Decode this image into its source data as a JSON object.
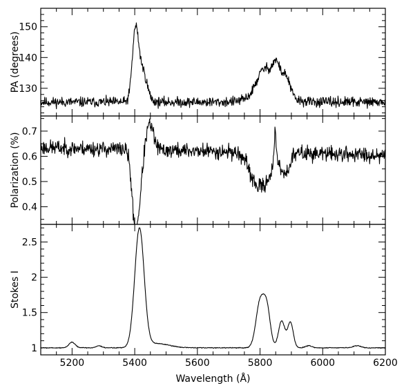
{
  "chart_data": [
    {
      "type": "line",
      "id": "pa",
      "ylabel": "PA (degrees)",
      "xlim": [
        5100,
        6200
      ],
      "ylim": [
        121,
        156
      ],
      "yticks": [
        130,
        140,
        150
      ],
      "yticklabels": [
        "130",
        "140",
        "150"
      ],
      "xticks": [
        5200,
        5400,
        5600,
        5800,
        6000,
        6200
      ],
      "show_xticklabels": false,
      "profile": {
        "baseline": 125.5,
        "noise": 1.6,
        "seed": 11,
        "components": [
          {
            "center": 5402,
            "width": 10,
            "amp": 22
          },
          {
            "center": 5425,
            "width": 14,
            "amp": 10
          },
          {
            "center": 5815,
            "width": 25,
            "amp": 9
          },
          {
            "center": 5852,
            "width": 12,
            "amp": 8
          },
          {
            "center": 5882,
            "width": 14,
            "amp": 7
          },
          {
            "center": 5830,
            "width": 55,
            "amp": 2
          }
        ]
      },
      "x": [
        5100,
        5380,
        5395,
        5402,
        5410,
        5425,
        5445,
        5470,
        5760,
        5790,
        5815,
        5835,
        5852,
        5865,
        5882,
        5910,
        5950,
        6200
      ],
      "y": [
        125.5,
        126,
        140,
        154,
        149,
        140,
        130,
        127,
        127,
        133,
        136,
        132,
        140,
        135,
        137,
        128,
        126,
        125
      ]
    },
    {
      "type": "line",
      "id": "pol",
      "ylabel": "Polarization (%)",
      "xlim": [
        5100,
        6200
      ],
      "ylim": [
        0.33,
        0.76
      ],
      "yticks": [
        0.4,
        0.5,
        0.6,
        0.7
      ],
      "yticklabels": [
        "0.4",
        "0.5",
        "0.6",
        "0.7"
      ],
      "xticks": [
        5200,
        5400,
        5600,
        5800,
        6000,
        6200
      ],
      "show_xticklabels": false,
      "profile": {
        "baseline": 0.635,
        "noise": 0.03,
        "seed": 23,
        "trend_end": 0.605,
        "components": [
          {
            "center": 5400,
            "width": 10,
            "amp": -0.26
          },
          {
            "center": 5415,
            "width": 10,
            "amp": -0.14
          },
          {
            "center": 5448,
            "width": 12,
            "amp": 0.1
          },
          {
            "center": 5790,
            "width": 25,
            "amp": -0.12
          },
          {
            "center": 5825,
            "width": 20,
            "amp": -0.06
          },
          {
            "center": 5848,
            "width": 3,
            "amp": 0.12
          },
          {
            "center": 5880,
            "width": 14,
            "amp": -0.08
          }
        ]
      },
      "x": [
        5100,
        5380,
        5395,
        5400,
        5412,
        5430,
        5448,
        5470,
        5760,
        5790,
        5820,
        5848,
        5865,
        5880,
        5910,
        6200
      ],
      "y": [
        0.66,
        0.63,
        0.45,
        0.35,
        0.44,
        0.6,
        0.73,
        0.66,
        0.63,
        0.49,
        0.54,
        0.75,
        0.58,
        0.52,
        0.6,
        0.59
      ]
    },
    {
      "type": "line",
      "id": "stokes",
      "ylabel": "Stokes I",
      "xlabel": "Wavelength (Å)",
      "xlim": [
        5100,
        6200
      ],
      "ylim": [
        0.9,
        2.75
      ],
      "yticks": [
        1,
        1.5,
        2,
        2.5
      ],
      "yticklabels": [
        "1",
        "1.5",
        "2",
        "2.5"
      ],
      "xticks": [
        5200,
        5400,
        5600,
        5800,
        6000,
        6200
      ],
      "xticklabels": [
        "5200",
        "5400",
        "5600",
        "5800",
        "6000",
        "6200"
      ],
      "show_xticklabels": true,
      "profile": {
        "baseline": 1.0,
        "noise": 0.006,
        "seed": 5,
        "components": [
          {
            "center": 5200,
            "width": 10,
            "amp": 0.08
          },
          {
            "center": 5285,
            "width": 8,
            "amp": 0.03
          },
          {
            "center": 5415,
            "width": 15,
            "amp": 1.68
          },
          {
            "center": 5470,
            "width": 40,
            "amp": 0.06
          },
          {
            "center": 5800,
            "width": 13,
            "amp": 0.64
          },
          {
            "center": 5822,
            "width": 11,
            "amp": 0.52
          },
          {
            "center": 5869,
            "width": 10,
            "amp": 0.38
          },
          {
            "center": 5897,
            "width": 9,
            "amp": 0.36
          },
          {
            "center": 5955,
            "width": 10,
            "amp": 0.03
          },
          {
            "center": 6110,
            "width": 12,
            "amp": 0.03
          }
        ]
      },
      "x": [
        5100,
        5190,
        5200,
        5215,
        5285,
        5380,
        5400,
        5415,
        5430,
        5460,
        5500,
        5770,
        5790,
        5810,
        5830,
        5850,
        5860,
        5880,
        5897,
        5912,
        5950,
        6100,
        6200
      ],
      "y": [
        1.0,
        1.05,
        1.09,
        1.05,
        1.03,
        1.1,
        1.9,
        2.68,
        2.2,
        1.15,
        1.08,
        1.05,
        1.6,
        1.62,
        1.55,
        1.0,
        1.3,
        1.38,
        1.4,
        1.1,
        1.02,
        1.03,
        1.0
      ]
    }
  ]
}
